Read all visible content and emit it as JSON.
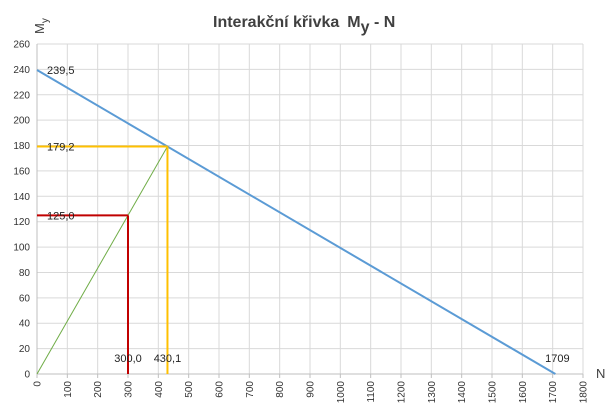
{
  "chart_data": {
    "type": "line",
    "title": {
      "main": "Interakční křivka",
      "symbol": "M",
      "subscript": "y",
      "suffix": " - N"
    },
    "xlabel": "N",
    "ylabel": {
      "symbol": "M",
      "subscript": "y"
    },
    "xlim": [
      0,
      1800
    ],
    "ylim": [
      0,
      260
    ],
    "xticks": [
      "0",
      "100",
      "200",
      "300",
      "400",
      "500",
      "600",
      "700",
      "800",
      "900",
      "1000",
      "1100",
      "1200",
      "1300",
      "1400",
      "1500",
      "1600",
      "1700",
      "1800"
    ],
    "yticks": [
      "0",
      "20",
      "40",
      "60",
      "80",
      "100",
      "120",
      "140",
      "160",
      "180",
      "200",
      "220",
      "240",
      "260"
    ],
    "grid": true,
    "series": [
      {
        "role": "interaction-line",
        "color": "#5b9bd5",
        "x": [
          0,
          1709
        ],
        "y": [
          239.5,
          0
        ]
      },
      {
        "role": "load-ray",
        "color": "#70ad47",
        "x": [
          0,
          430.1
        ],
        "y": [
          0,
          179.2
        ]
      }
    ],
    "guides": [
      {
        "role": "applied-load",
        "color": "#c00000",
        "x": 300.0,
        "y": 125.0,
        "x_label": "300,0",
        "y_label": "125,0"
      },
      {
        "role": "capacity-point",
        "color": "#ffc000",
        "x": 430.1,
        "y": 179.2,
        "x_label": "430,1",
        "y_label": "179,2"
      }
    ],
    "annotations": [
      {
        "role": "y-intercept",
        "text": "239,5",
        "x": 0,
        "y": 239.5
      },
      {
        "role": "x-intercept",
        "text": "1709",
        "x": 1709,
        "y": 0
      }
    ]
  }
}
